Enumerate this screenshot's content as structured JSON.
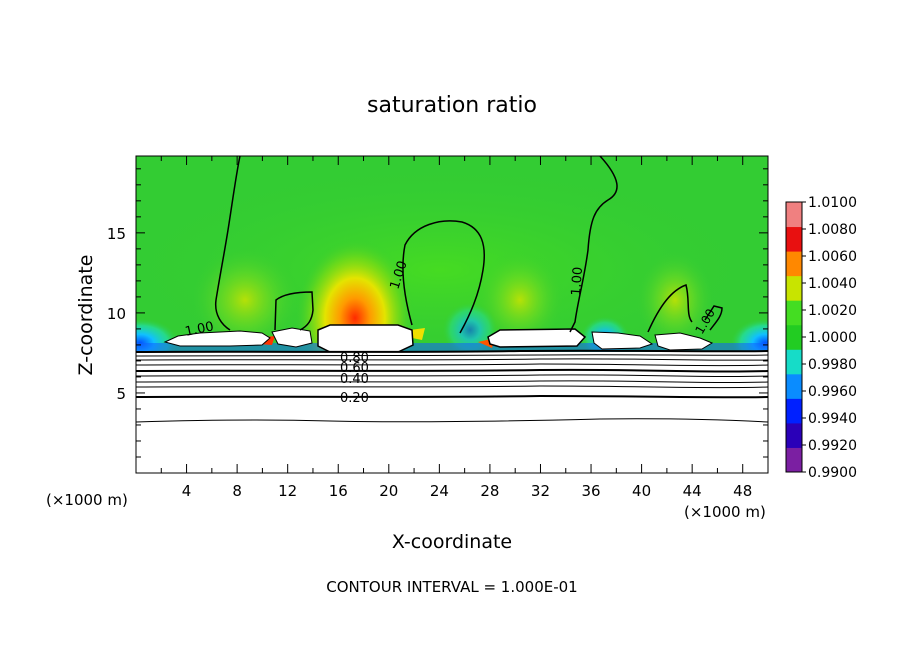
{
  "chart_data": {
    "type": "heatmap",
    "title": "saturation ratio",
    "xlabel": "X-coordinate",
    "ylabel": "Z-coordinate",
    "x_unit_left": "(×1000 m)",
    "x_unit_right": "(×1000 m)",
    "xlim": [
      0,
      50
    ],
    "ylim": [
      0,
      19.8
    ],
    "x_ticks": [
      "4",
      "8",
      "12",
      "16",
      "20",
      "24",
      "28",
      "32",
      "36",
      "40",
      "44",
      "48"
    ],
    "y_ticks": [
      "5",
      "10",
      "15"
    ],
    "footnote": "CONTOUR INTERVAL = 1.000E-01",
    "colorbar": {
      "labels": [
        "1.0100",
        "1.0080",
        "1.0060",
        "1.0040",
        "1.0020",
        "1.0000",
        "0.9980",
        "0.9960",
        "0.9940",
        "0.9920",
        "0.9900"
      ],
      "min": 0.99,
      "max": 1.01,
      "colors": [
        "#7b1fa2",
        "#2a00b8",
        "#0020ff",
        "#0a8cff",
        "#16dcc8",
        "#22cc22",
        "#44dd22",
        "#c8e400",
        "#ff8800",
        "#e81010",
        "#f08080"
      ]
    },
    "contour_labels": [
      "1.00",
      "1.00",
      "1.00",
      "1.00",
      "0.80",
      "0.60",
      "0.40",
      "0.20"
    ],
    "contour_levels": [
      0.1,
      0.2,
      0.3,
      0.4,
      0.5,
      0.6,
      0.7,
      0.8,
      0.9,
      1.0
    ]
  }
}
